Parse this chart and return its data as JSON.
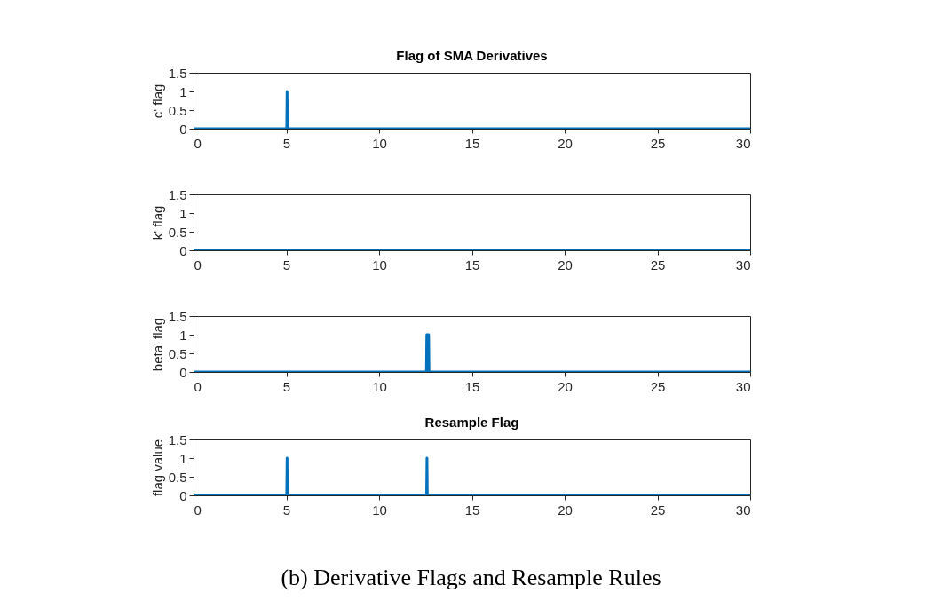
{
  "chart_data": [
    {
      "type": "line",
      "title": "Flag of SMA Derivatives",
      "ylabel": "c' flag",
      "x": [
        0,
        5.02,
        5.04,
        5.06,
        30
      ],
      "values": [
        0,
        0,
        1,
        0,
        0
      ],
      "color": "#0072bd",
      "xlim": [
        0,
        30
      ],
      "ylim": [
        0,
        1.5
      ],
      "xticks": [
        0,
        5,
        10,
        15,
        20,
        25,
        30
      ],
      "yticks": [
        0,
        0.5,
        1,
        1.5
      ]
    },
    {
      "type": "line",
      "ylabel": "k' flag",
      "x": [
        0,
        30
      ],
      "values": [
        0,
        0
      ],
      "color": "#0072bd",
      "xlim": [
        0,
        30
      ],
      "ylim": [
        0,
        1.5
      ],
      "xticks": [
        0,
        5,
        10,
        15,
        20,
        25,
        30
      ],
      "yticks": [
        0,
        0.5,
        1,
        1.5
      ]
    },
    {
      "type": "line",
      "ylabel": "beta' flag",
      "x": [
        0,
        12.55,
        12.57,
        12.67,
        12.69,
        30
      ],
      "values": [
        0,
        0,
        1,
        1,
        0,
        0
      ],
      "color": "#0072bd",
      "xlim": [
        0,
        30
      ],
      "ylim": [
        0,
        1.5
      ],
      "xticks": [
        0,
        5,
        10,
        15,
        20,
        25,
        30
      ],
      "yticks": [
        0,
        0.5,
        1,
        1.5
      ]
    },
    {
      "type": "line",
      "title": "Resample Flag",
      "ylabel": "flag value",
      "x": [
        0,
        5.02,
        5.04,
        5.06,
        12.56,
        12.58,
        12.6,
        30
      ],
      "values": [
        0,
        0,
        1,
        0,
        0,
        1,
        0,
        0
      ],
      "color": "#0072bd",
      "xlim": [
        0,
        30
      ],
      "ylim": [
        0,
        1.5
      ],
      "xticks": [
        0,
        5,
        10,
        15,
        20,
        25,
        30
      ],
      "yticks": [
        0,
        0.5,
        1,
        1.5
      ],
      "annotations": [
        "(b) Derivative Flags and Resample Rules"
      ]
    }
  ]
}
